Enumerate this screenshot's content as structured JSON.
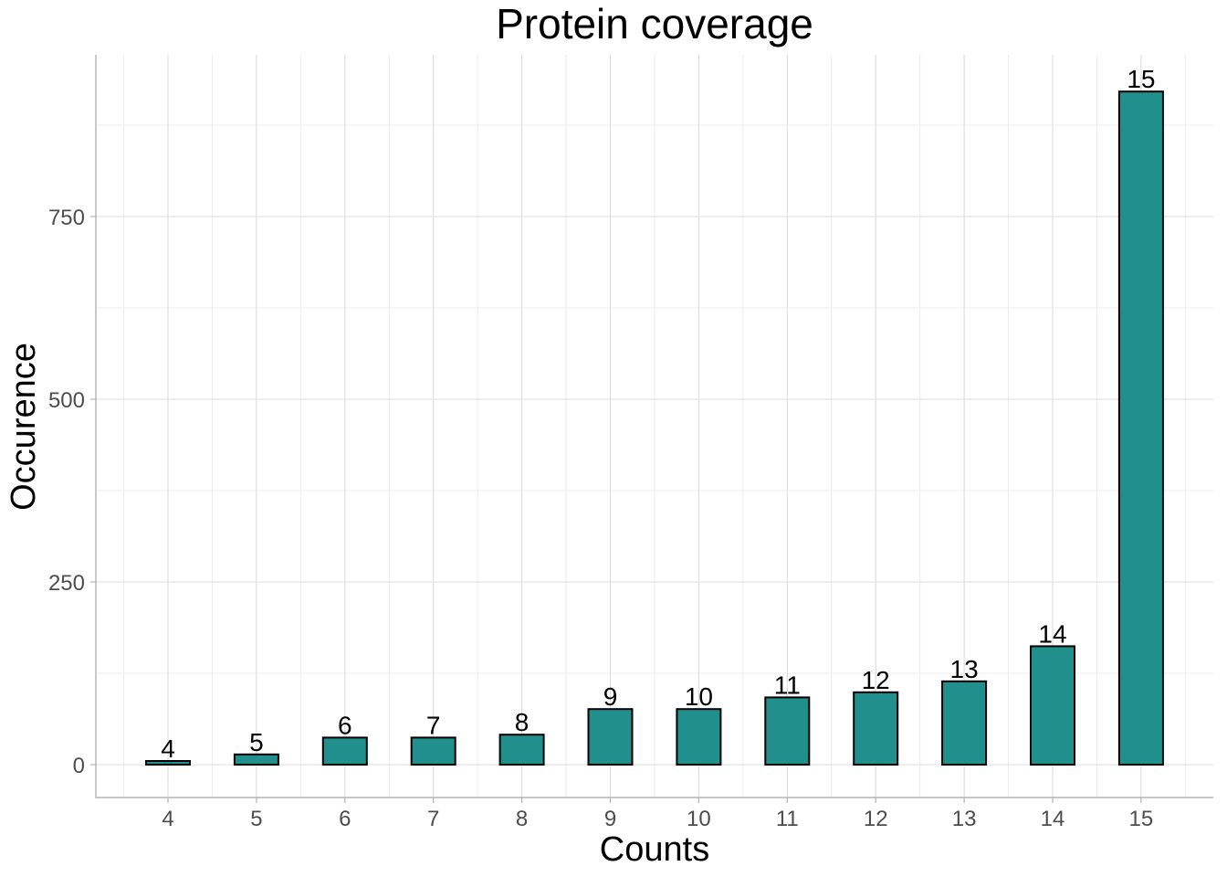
{
  "chart_data": {
    "type": "bar",
    "title": "Protein coverage",
    "xlabel": "Counts",
    "ylabel": "Occurence",
    "categories": [
      "4",
      "5",
      "6",
      "7",
      "8",
      "9",
      "10",
      "11",
      "12",
      "13",
      "14",
      "15"
    ],
    "values": [
      5,
      14,
      37,
      37,
      41,
      76,
      76,
      92,
      99,
      114,
      162,
      921
    ],
    "bar_labels": [
      "4",
      "5",
      "6",
      "7",
      "8",
      "9",
      "10",
      "11",
      "12",
      "13",
      "14",
      "15"
    ],
    "y_ticks": [
      0,
      250,
      500,
      750
    ],
    "y_tick_labels": [
      "0",
      "250",
      "500",
      "750"
    ],
    "ylim": [
      -45,
      970
    ],
    "grid": true,
    "legend": "none",
    "bar_color": "#21908C",
    "bar_outline": "#000000"
  }
}
